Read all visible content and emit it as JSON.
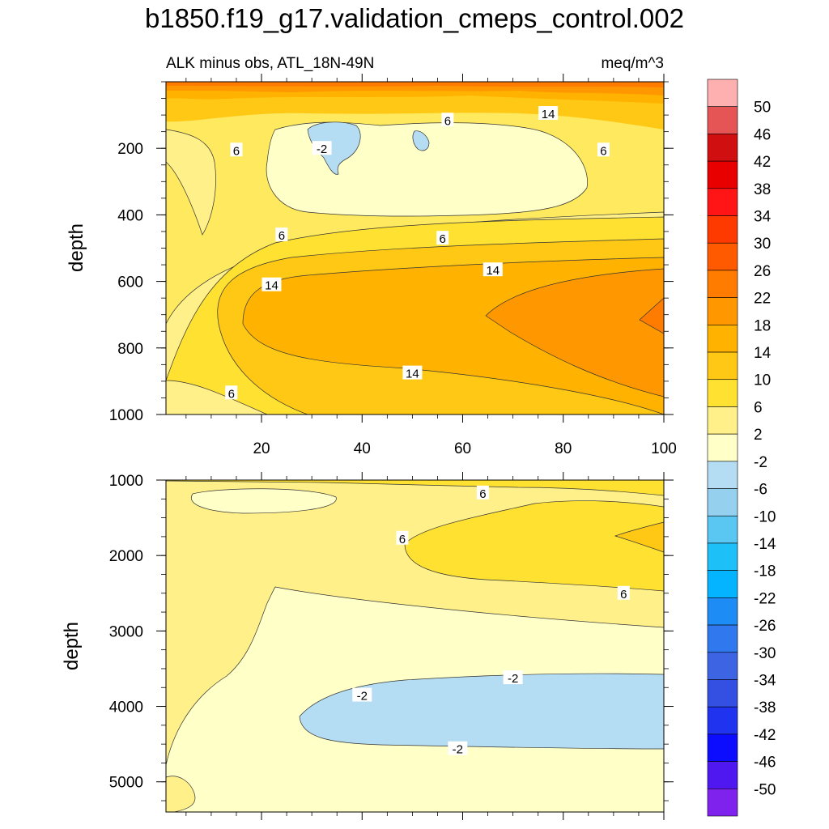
{
  "title": "b1850.f19_g17.validation_cmeps_control.002",
  "chart_data": [
    {
      "type": "contour",
      "panel": "upper",
      "subtitle_left": "ALK minus obs, ATL_18N-49N",
      "subtitle_right": "meq/m^3",
      "ylabel": "depth",
      "xlabel": "",
      "xlim": [
        1,
        100
      ],
      "ylim": [
        1000,
        0
      ],
      "xticks": [
        "20",
        "40",
        "60",
        "80",
        "100"
      ],
      "yticks": [
        "200",
        "400",
        "600",
        "800",
        "1000"
      ],
      "contour_labels": [
        {
          "text": "6",
          "x": 57,
          "y": 115
        },
        {
          "text": "14",
          "x": 77,
          "y": 95
        },
        {
          "text": "6",
          "x": 88,
          "y": 205
        },
        {
          "text": "6",
          "x": 15,
          "y": 205
        },
        {
          "text": "-2",
          "x": 32,
          "y": 200
        },
        {
          "text": "6",
          "x": 24,
          "y": 460
        },
        {
          "text": "6",
          "x": 56,
          "y": 470
        },
        {
          "text": "14",
          "x": 66,
          "y": 565
        },
        {
          "text": "14",
          "x": 22,
          "y": 610
        },
        {
          "text": "14",
          "x": 50,
          "y": 875
        },
        {
          "text": "6",
          "x": 14,
          "y": 935
        }
      ]
    },
    {
      "type": "contour",
      "panel": "lower",
      "ylabel": "depth",
      "xlabel": "",
      "xlim": [
        1,
        100
      ],
      "ylim": [
        5400,
        1000
      ],
      "xticks": [
        "20",
        "40",
        "60",
        "80",
        "100"
      ],
      "yticks": [
        "1000",
        "2000",
        "3000",
        "4000",
        "5000"
      ],
      "contour_labels": [
        {
          "text": "6",
          "x": 64,
          "y": 1170
        },
        {
          "text": "6",
          "x": 48,
          "y": 1770
        },
        {
          "text": "6",
          "x": 92,
          "y": 2500
        },
        {
          "text": "-2",
          "x": 40,
          "y": 3850
        },
        {
          "text": "-2",
          "x": 70,
          "y": 3620
        },
        {
          "text": "-2",
          "x": 59,
          "y": 4560
        }
      ]
    }
  ],
  "colorbar": {
    "labels": [
      "50",
      "46",
      "42",
      "38",
      "34",
      "30",
      "26",
      "22",
      "18",
      "14",
      "10",
      "6",
      "2",
      "-2",
      "-6",
      "-10",
      "-14",
      "-18",
      "-22",
      "-26",
      "-30",
      "-34",
      "-38",
      "-42",
      "-46",
      "-50"
    ],
    "colors": [
      "#feb0b0",
      "#e55555",
      "#d01010",
      "#e80000",
      "#ff1515",
      "#ff3a00",
      "#ff5a00",
      "#ff7c00",
      "#ff9800",
      "#ffb200",
      "#ffc815",
      "#ffe132",
      "#fff08a",
      "#ffffc8",
      "#b4dcf2",
      "#96d0ef",
      "#5ac6f2",
      "#1ec0f8",
      "#05b4ff",
      "#1e8cf5",
      "#2f78ee",
      "#3c64e3",
      "#3450e2",
      "#2034f0",
      "#0c0cff",
      "#5018f0",
      "#8022ee"
    ]
  }
}
